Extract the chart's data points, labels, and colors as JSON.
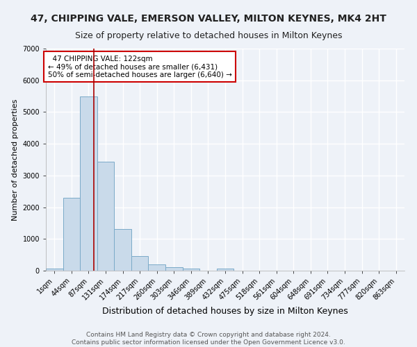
{
  "title": "47, CHIPPING VALE, EMERSON VALLEY, MILTON KEYNES, MK4 2HT",
  "subtitle": "Size of property relative to detached houses in Milton Keynes",
  "xlabel": "Distribution of detached houses by size in Milton Keynes",
  "ylabel": "Number of detached properties",
  "footer_line1": "Contains HM Land Registry data © Crown copyright and database right 2024.",
  "footer_line2": "Contains public sector information licensed under the Open Government Licence v3.0.",
  "bar_labels": [
    "1sqm",
    "44sqm",
    "87sqm",
    "131sqm",
    "174sqm",
    "217sqm",
    "260sqm",
    "303sqm",
    "346sqm",
    "389sqm",
    "432sqm",
    "475sqm",
    "518sqm",
    "561sqm",
    "604sqm",
    "648sqm",
    "691sqm",
    "734sqm",
    "777sqm",
    "820sqm",
    "863sqm"
  ],
  "bar_values": [
    75,
    2300,
    5500,
    3430,
    1320,
    460,
    190,
    105,
    65,
    0,
    65,
    0,
    0,
    0,
    0,
    0,
    0,
    0,
    0,
    0,
    0
  ],
  "bar_color": "#c9daea",
  "bar_edgecolor": "#7aaac8",
  "annotation_title": "47 CHIPPING VALE: 122sqm",
  "annotation_line1": "← 49% of detached houses are smaller (6,431)",
  "annotation_line2": "50% of semi-detached houses are larger (6,640) →",
  "ylim": [
    0,
    7000
  ],
  "background_color": "#eef2f8",
  "grid_color": "#ffffff",
  "annotation_box_facecolor": "#ffffff",
  "annotation_box_edgecolor": "#cc0000",
  "red_line_color": "#aa0000",
  "title_fontsize": 10,
  "subtitle_fontsize": 9,
  "xlabel_fontsize": 9,
  "ylabel_fontsize": 8,
  "tick_fontsize": 7,
  "annotation_fontsize": 7.5,
  "footer_fontsize": 6.5
}
